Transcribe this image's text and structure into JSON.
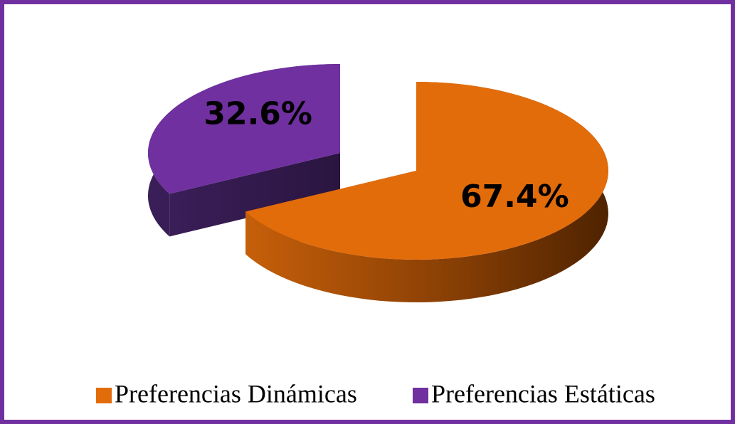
{
  "chart_data": {
    "type": "pie3d",
    "categories": [
      "Preferencias Dinámicas",
      "Preferencias Estáticas"
    ],
    "values": [
      67.4,
      32.6
    ],
    "value_labels": [
      "67.4%",
      "32.6%"
    ],
    "colors": [
      "#e36c0a",
      "#7030a0"
    ],
    "legend": "bottom"
  }
}
